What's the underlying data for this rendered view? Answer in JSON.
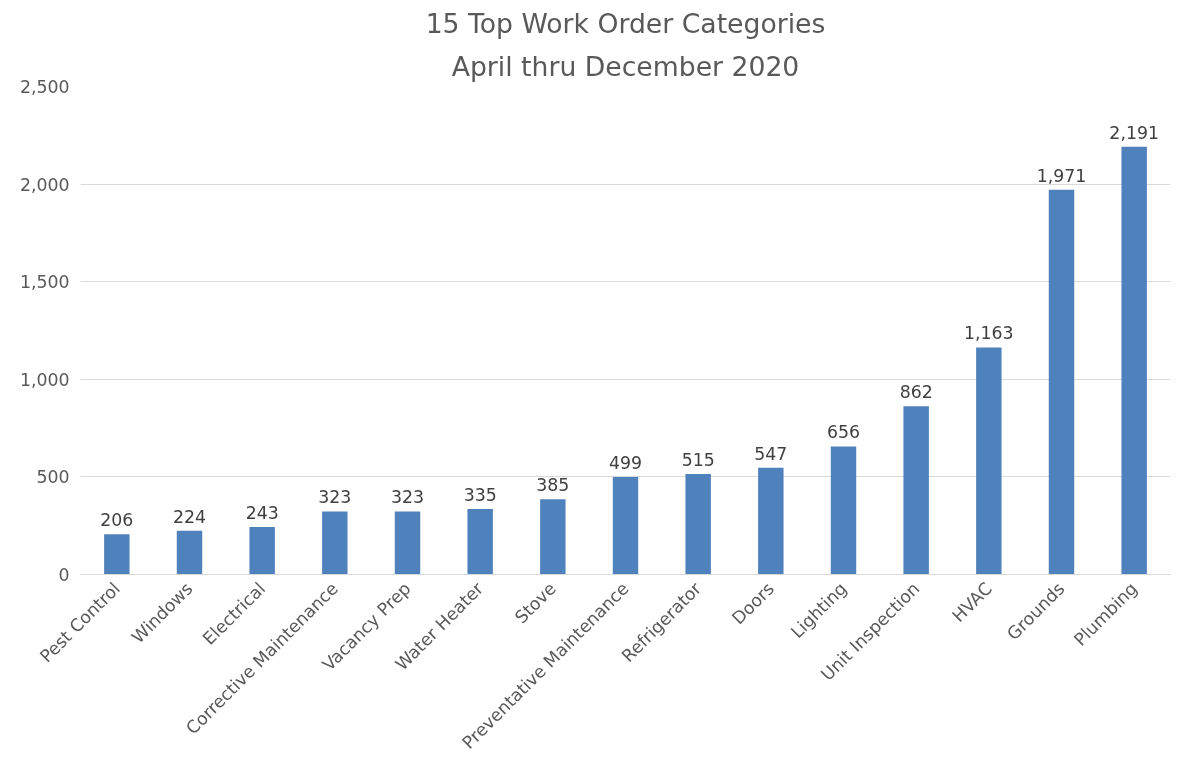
{
  "chart_data": {
    "type": "bar",
    "title": "15 Top Work Order Categories",
    "subtitle": "April thru December 2020",
    "categories": [
      "Pest Control",
      "Windows",
      "Electrical",
      "Corrective Maintenance",
      "Vacancy Prep",
      "Water Heater",
      "Stove",
      "Preventative Maintenance",
      "Refrigerator",
      "Doors",
      "Lighting",
      "Unit Inspection",
      "HVAC",
      "Grounds",
      "Plumbing"
    ],
    "values": [
      206,
      224,
      243,
      323,
      323,
      335,
      385,
      499,
      515,
      547,
      656,
      862,
      1163,
      1971,
      2191
    ],
    "value_labels": [
      "206",
      "224",
      "243",
      "323",
      "323",
      "335",
      "385",
      "499",
      "515",
      "547",
      "656",
      "862",
      "1,163",
      "1,971",
      "2,191"
    ],
    "color": "#4f81bd",
    "ylim": [
      0,
      2500
    ],
    "yticks": [
      0,
      {
        "value": 500,
        "label": "500"
      },
      {
        "value": 1000,
        "label": "1,000"
      },
      {
        "value": 1500,
        "label": "1,500"
      },
      {
        "value": 2000,
        "label": "2,000"
      },
      {
        "value": 2500,
        "label": "2,500"
      }
    ],
    "grid": "y"
  }
}
